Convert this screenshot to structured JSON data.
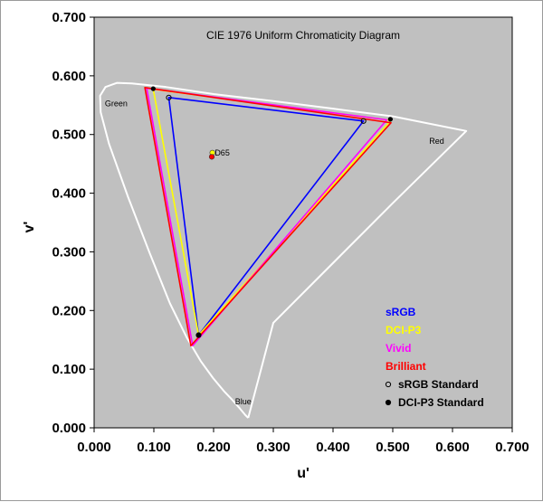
{
  "chart_data": {
    "type": "scatter",
    "title": "CIE 1976 Uniform Chromaticity Diagram",
    "xlabel": "u'",
    "ylabel": "v'",
    "xlim": [
      0,
      0.7
    ],
    "ylim": [
      0,
      0.7
    ],
    "xticks": [
      "0.000",
      "0.100",
      "0.200",
      "0.300",
      "0.400",
      "0.500",
      "0.600",
      "0.700"
    ],
    "yticks": [
      "0.000",
      "0.100",
      "0.200",
      "0.300",
      "0.400",
      "0.500",
      "0.600",
      "0.700"
    ],
    "grid": false,
    "plot_background": "#c0c0c0",
    "legend_position": "bottom-right",
    "region_labels": [
      {
        "text": "Green",
        "u": 0.018,
        "v": 0.548
      },
      {
        "text": "Red",
        "u": 0.561,
        "v": 0.484
      },
      {
        "text": "Blue",
        "u": 0.236,
        "v": 0.04
      },
      {
        "text": "D65",
        "u": 0.202,
        "v": 0.464
      }
    ],
    "spectral_locus": {
      "color": "#ffffff",
      "points": [
        [
          0.258,
          0.017
        ],
        [
          0.253,
          0.022
        ],
        [
          0.244,
          0.033
        ],
        [
          0.231,
          0.048
        ],
        [
          0.217,
          0.063
        ],
        [
          0.199,
          0.085
        ],
        [
          0.179,
          0.113
        ],
        [
          0.155,
          0.154
        ],
        [
          0.127,
          0.212
        ],
        [
          0.093,
          0.298
        ],
        [
          0.057,
          0.393
        ],
        [
          0.025,
          0.484
        ],
        [
          0.011,
          0.538
        ],
        [
          0.01,
          0.566
        ],
        [
          0.019,
          0.581
        ],
        [
          0.038,
          0.588
        ],
        [
          0.063,
          0.587
        ],
        [
          0.12,
          0.581
        ],
        [
          0.2,
          0.569
        ],
        [
          0.3,
          0.557
        ],
        [
          0.4,
          0.544
        ],
        [
          0.5,
          0.531
        ],
        [
          0.623,
          0.506
        ],
        [
          0.5,
          0.383
        ],
        [
          0.4,
          0.281
        ],
        [
          0.3,
          0.179
        ],
        [
          0.258,
          0.017
        ]
      ]
    },
    "series": [
      {
        "name": "sRGB",
        "color": "#0000ff",
        "points": [
          [
            0.451,
            0.523
          ],
          [
            0.125,
            0.563
          ],
          [
            0.175,
            0.158
          ]
        ]
      },
      {
        "name": "DCI-P3",
        "color": "#ffff00",
        "points": [
          [
            0.497,
            0.524
          ],
          [
            0.099,
            0.577
          ],
          [
            0.175,
            0.158
          ]
        ]
      },
      {
        "name": "Vivid",
        "color": "#ff00ff",
        "points": [
          [
            0.49,
            0.525
          ],
          [
            0.088,
            0.579
          ],
          [
            0.165,
            0.14
          ]
        ]
      },
      {
        "name": "Brilliant",
        "color": "#ff0000",
        "points": [
          [
            0.497,
            0.52
          ],
          [
            0.085,
            0.58
          ],
          [
            0.162,
            0.14
          ]
        ]
      }
    ],
    "reference_points": [
      {
        "name": "sRGB Standard",
        "marker": "open-circle",
        "color": "#000000",
        "points": [
          [
            0.451,
            0.523
          ],
          [
            0.125,
            0.563
          ],
          [
            0.175,
            0.158
          ]
        ]
      },
      {
        "name": "DCI-P3 Standard",
        "marker": "filled-circle",
        "color": "#000000",
        "points": [
          [
            0.496,
            0.526
          ],
          [
            0.099,
            0.578
          ],
          [
            0.175,
            0.158
          ]
        ]
      }
    ],
    "white_points": [
      {
        "label": "D65",
        "color": "#ffff00",
        "u": 0.198,
        "v": 0.469
      },
      {
        "label": "D65",
        "color": "#ff0000",
        "u": 0.197,
        "v": 0.462
      }
    ]
  }
}
